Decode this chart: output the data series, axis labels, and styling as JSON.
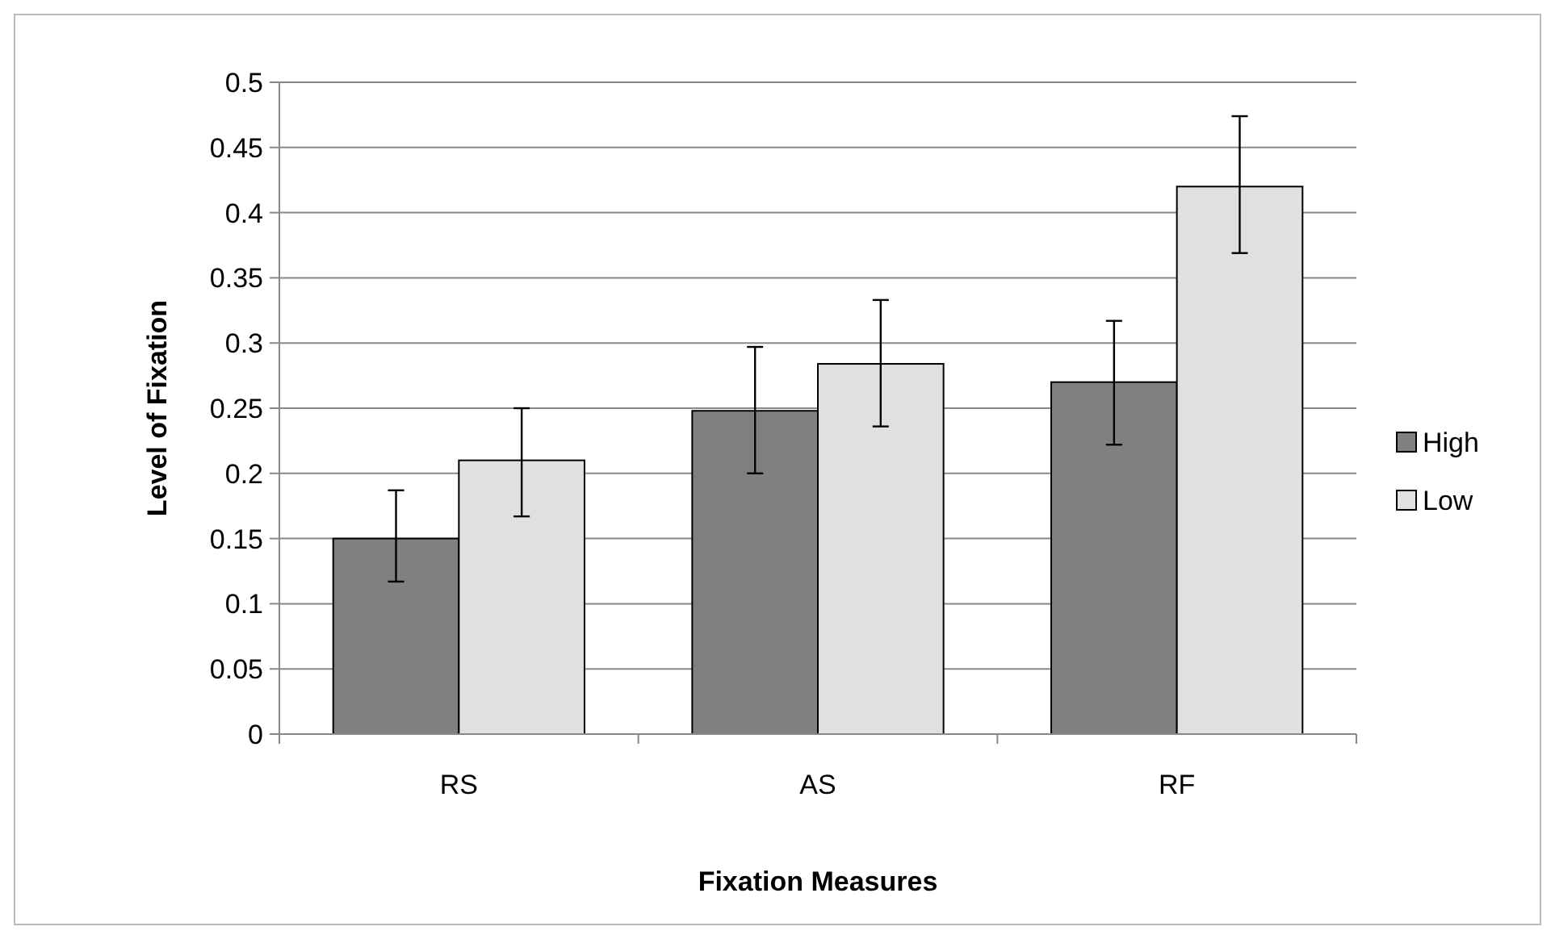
{
  "chart_data": {
    "type": "bar",
    "xlabel": "Fixation Measures",
    "ylabel": "Level of Fixation",
    "categories": [
      "RS",
      "AS",
      "RF"
    ],
    "series": [
      {
        "name": "High",
        "color": "#808080",
        "values": [
          0.15,
          0.248,
          0.27
        ],
        "errors": [
          [
            0.117,
            0.187
          ],
          [
            0.2,
            0.297
          ],
          [
            0.222,
            0.317
          ]
        ]
      },
      {
        "name": "Low",
        "color": "#e0e0e0",
        "values": [
          0.21,
          0.284,
          0.42
        ],
        "errors": [
          [
            0.167,
            0.25
          ],
          [
            0.236,
            0.333
          ],
          [
            0.369,
            0.474
          ]
        ]
      }
    ],
    "ylim": [
      0,
      0.5
    ],
    "yticks": [
      0,
      0.05,
      0.1,
      0.15,
      0.2,
      0.25,
      0.3,
      0.35,
      0.4,
      0.45,
      0.5
    ],
    "grid": "y",
    "legend": "right"
  }
}
